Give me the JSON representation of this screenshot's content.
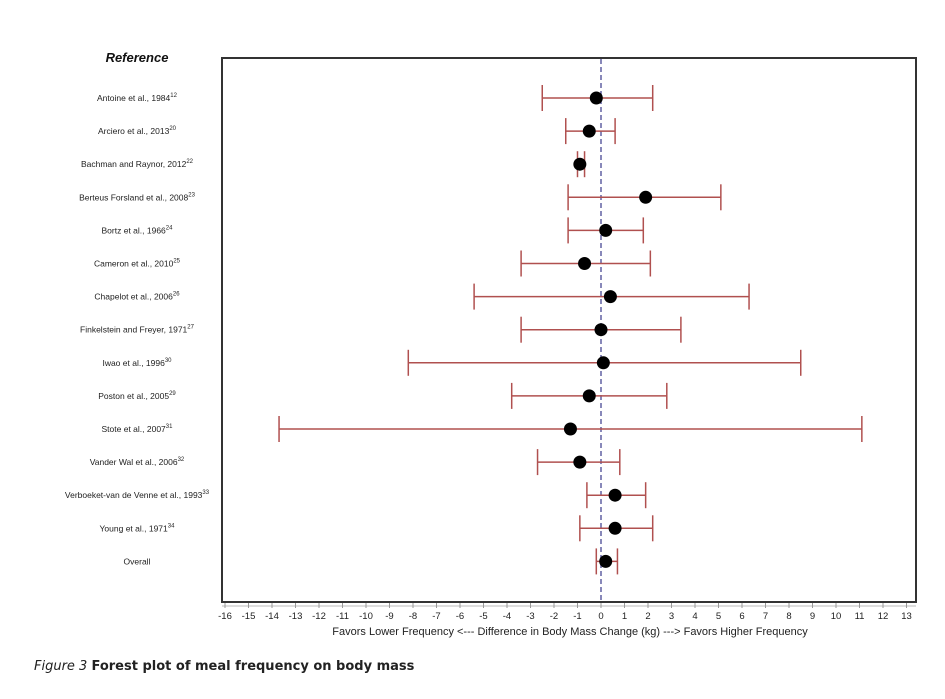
{
  "chart_data": {
    "type": "forest",
    "title": "",
    "reference_header": "Reference",
    "xlabel": "Favors Lower Frequency <--- Difference in Body Mass Change (kg) ---> Favors Higher Frequency",
    "xlim": [
      -16,
      13
    ],
    "xticks": [
      -16,
      -15,
      -14,
      -13,
      -12,
      -11,
      -10,
      -9,
      -8,
      -7,
      -6,
      -5,
      -4,
      -3,
      -2,
      -1,
      0,
      1,
      2,
      3,
      4,
      5,
      6,
      7,
      8,
      9,
      10,
      11,
      12,
      13
    ],
    "reference_line": 0,
    "colors": {
      "ci": "#b0504f",
      "point": "#000000",
      "ref_line": "#6a6aa8",
      "frame": "#333333"
    },
    "studies": [
      {
        "label": "Antoine et al., 1984",
        "ref": "12",
        "estimate": -0.2,
        "lower": -2.5,
        "upper": 2.2
      },
      {
        "label": "Arciero et al., 2013",
        "ref": "20",
        "estimate": -0.5,
        "lower": -1.5,
        "upper": 0.6
      },
      {
        "label": "Bachman and Raynor, 2012",
        "ref": "22",
        "estimate": -0.9,
        "lower": -1.0,
        "upper": -0.7
      },
      {
        "label": "Berteus Forsland et al., 2008",
        "ref": "23",
        "estimate": 1.9,
        "lower": -1.4,
        "upper": 5.1
      },
      {
        "label": "Bortz et al., 1966",
        "ref": "24",
        "estimate": 0.2,
        "lower": -1.4,
        "upper": 1.8
      },
      {
        "label": "Cameron et al., 2010",
        "ref": "25",
        "estimate": -0.7,
        "lower": -3.4,
        "upper": 2.1
      },
      {
        "label": "Chapelot et al., 2006",
        "ref": "26",
        "estimate": 0.4,
        "lower": -5.4,
        "upper": 6.3
      },
      {
        "label": "Finkelstein and Freyer, 1971",
        "ref": "27",
        "estimate": 0.0,
        "lower": -3.4,
        "upper": 3.4
      },
      {
        "label": "Iwao et al., 1996",
        "ref": "30",
        "estimate": 0.1,
        "lower": -8.2,
        "upper": 8.5
      },
      {
        "label": "Poston et al., 2005",
        "ref": "29",
        "estimate": -0.5,
        "lower": -3.8,
        "upper": 2.8
      },
      {
        "label": "Stote et al., 2007",
        "ref": "31",
        "estimate": -1.3,
        "lower": -13.7,
        "upper": 11.1
      },
      {
        "label": "Vander Wal et al., 2006",
        "ref": "32",
        "estimate": -0.9,
        "lower": -2.7,
        "upper": 0.8
      },
      {
        "label": "Verboeket-van de Venne et al., 1993",
        "ref": "33",
        "estimate": 0.6,
        "lower": -0.6,
        "upper": 1.9
      },
      {
        "label": "Young et al., 1971",
        "ref": "34",
        "estimate": 0.6,
        "lower": -0.9,
        "upper": 2.2
      },
      {
        "label": "Overall",
        "ref": "",
        "estimate": 0.2,
        "lower": -0.2,
        "upper": 0.7
      }
    ]
  },
  "caption": {
    "figure_number": "Figure 3",
    "title": "Forest plot of meal frequency on body mass"
  }
}
